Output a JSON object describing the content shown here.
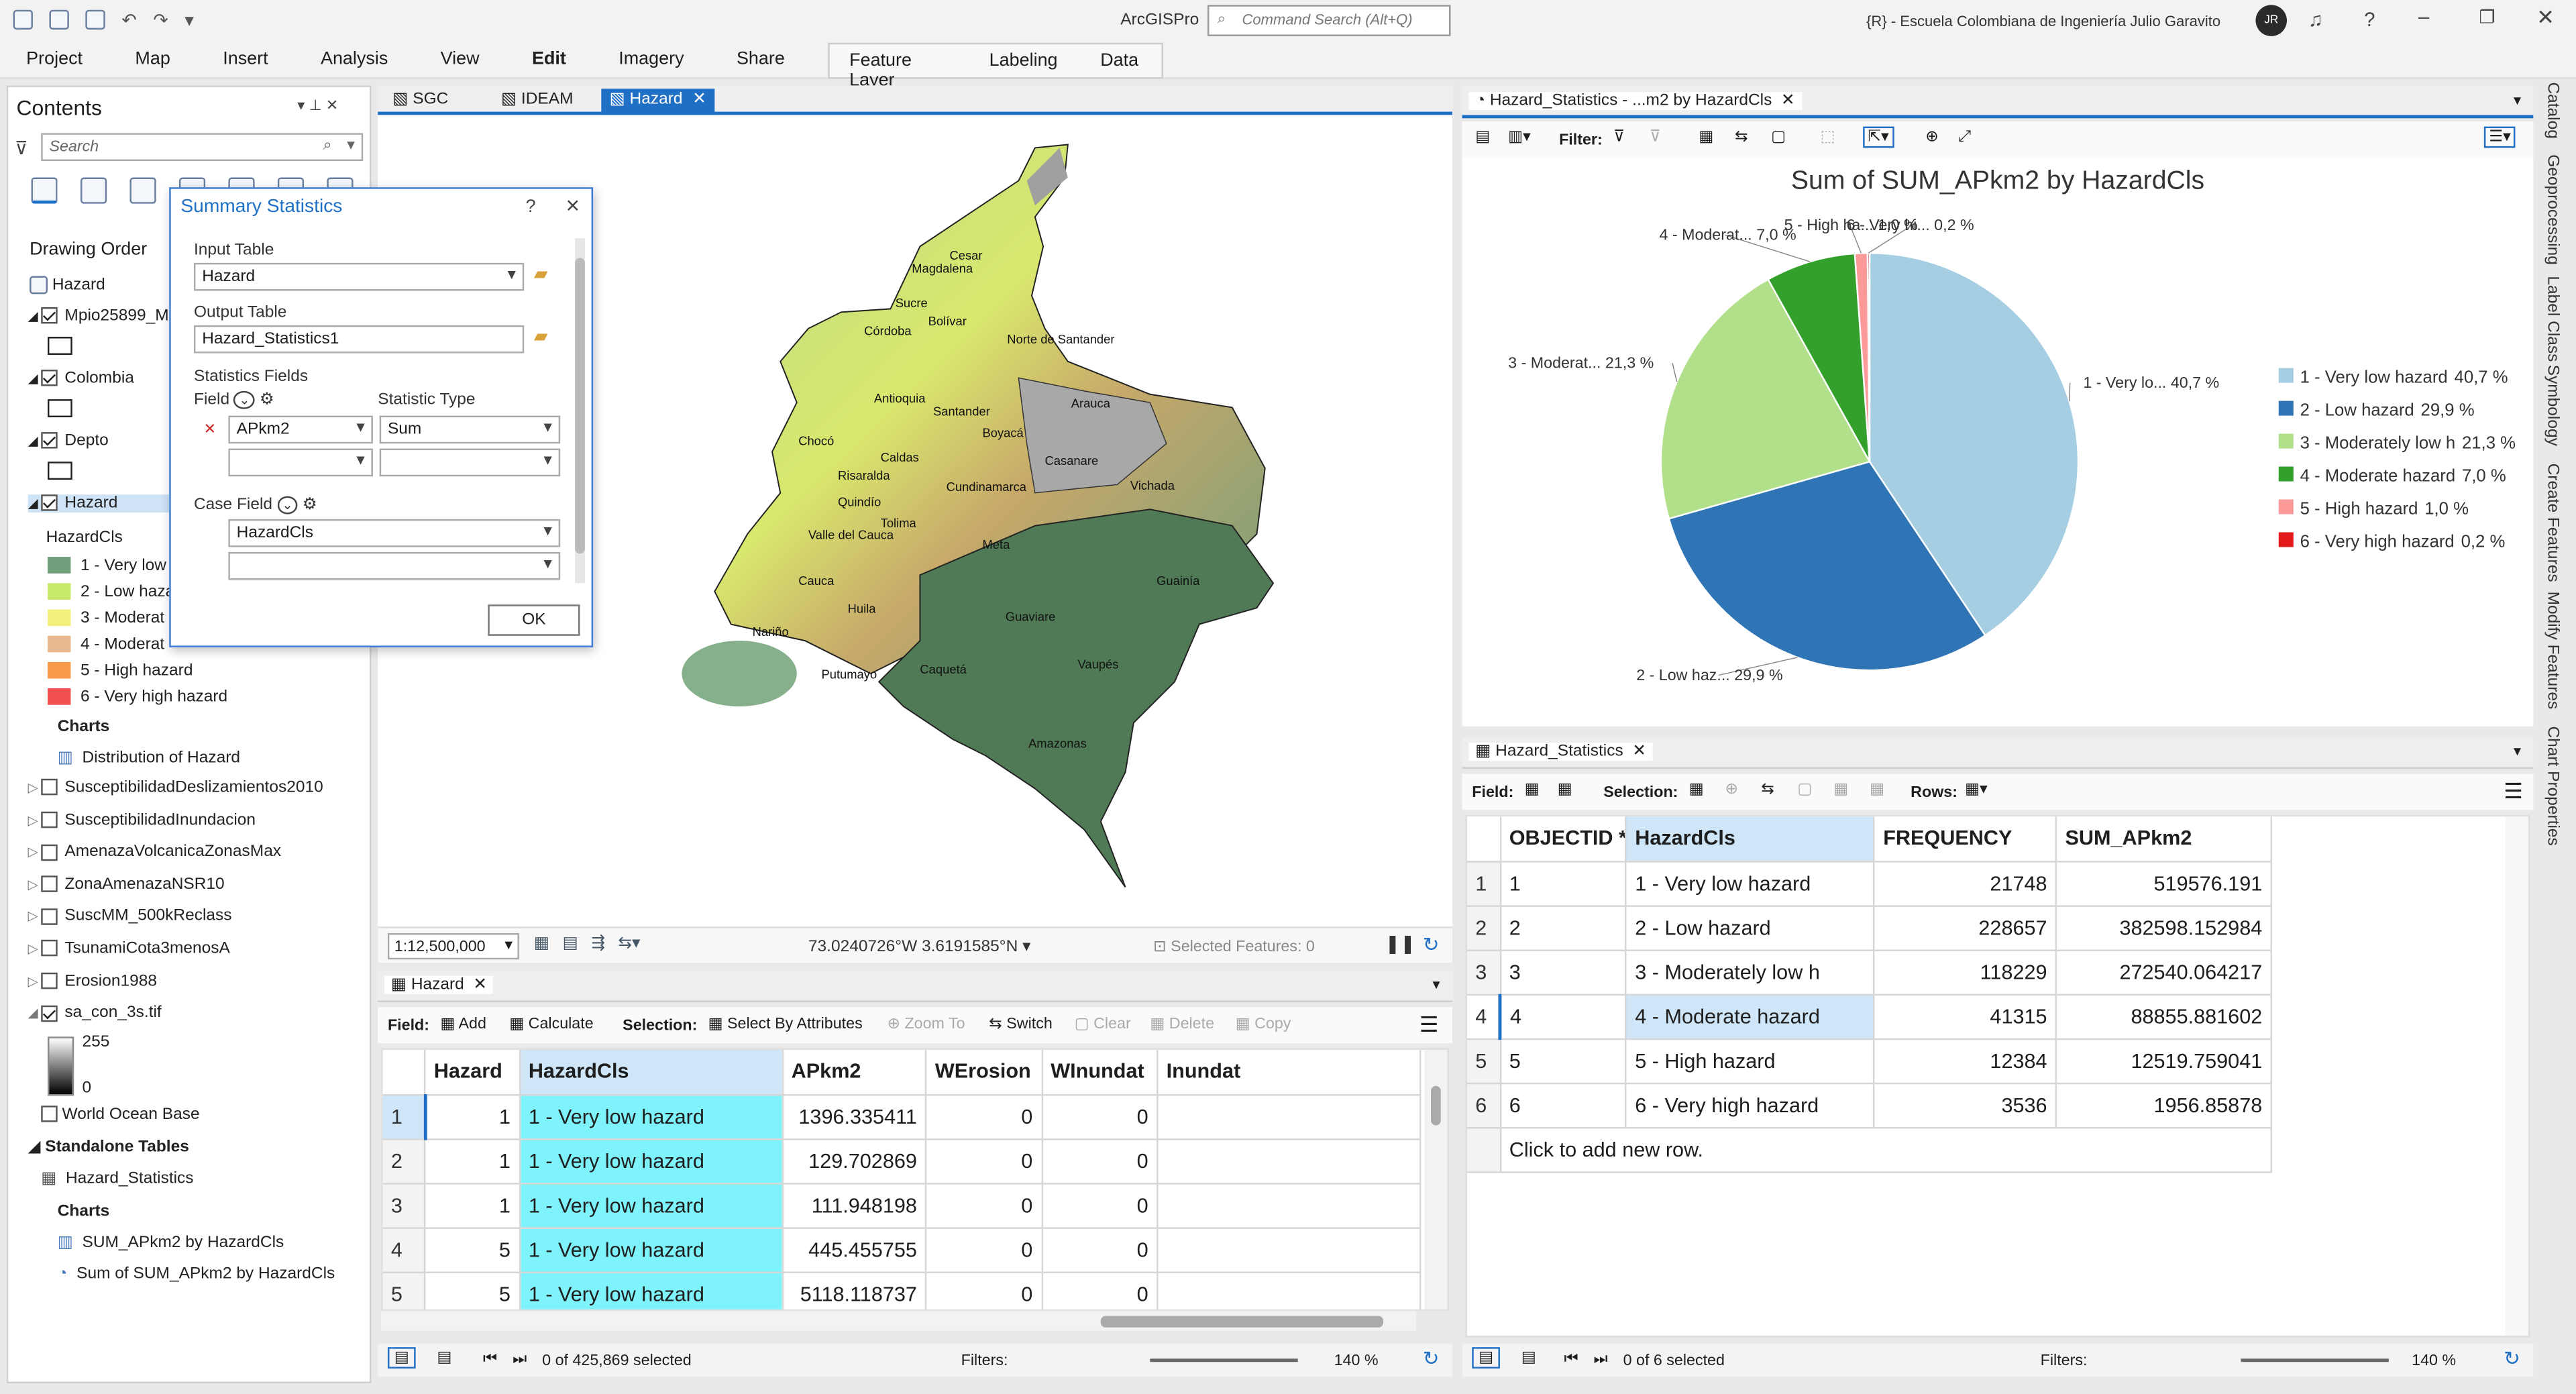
{
  "app": {
    "title": "ArcGISPro",
    "command_search_placeholder": "Command Search (Alt+Q)",
    "org": "{R} - Escuela Colombiana de Ingeniería Julio Garavito",
    "avatar_initials": "JR"
  },
  "ribbon": {
    "tabs": [
      "Project",
      "Map",
      "Insert",
      "Analysis",
      "View",
      "Edit",
      "Imagery",
      "Share",
      "Help"
    ],
    "active_tab": "Edit",
    "context_tabs": [
      "Feature Layer",
      "Labeling",
      "Data"
    ]
  },
  "contents": {
    "title": "Contents",
    "search_placeholder": "Search",
    "drawing_order": "Drawing Order",
    "map_name": "Hazard",
    "layers": [
      {
        "name": "Mpio25899_M",
        "checked": true
      },
      {
        "name": "Colombia",
        "checked": true
      },
      {
        "name": "Depto",
        "checked": true
      },
      {
        "name": "Hazard",
        "checked": true
      }
    ],
    "hazard_field": "HazardCls",
    "legend": [
      {
        "label": "1 - Very low",
        "color": "#6e9e7a"
      },
      {
        "label": "2 - Low haza",
        "color": "#c8e86a"
      },
      {
        "label": "3 - Moderat",
        "color": "#f2f07a"
      },
      {
        "label": "4 - Moderat",
        "color": "#e8b98e"
      },
      {
        "label": "5 - High hazard",
        "color": "#f89a4a"
      },
      {
        "label": "6 - Very high hazard",
        "color": "#f25050"
      }
    ],
    "charts_label": "Charts",
    "chart_item": "Distribution of Hazard",
    "more_layers": [
      {
        "name": "SusceptibilidadDeslizamientos2010",
        "checked": false
      },
      {
        "name": "SusceptibilidadInundacion",
        "checked": false
      },
      {
        "name": "AmenazaVolcanicaZonasMax",
        "checked": false
      },
      {
        "name": "ZonaAmenazaNSR10",
        "checked": false
      },
      {
        "name": "SuscMM_500kReclass",
        "checked": false
      },
      {
        "name": "TsunamiCota3menosA",
        "checked": false
      },
      {
        "name": "Erosion1988",
        "checked": false
      },
      {
        "name": "sa_con_3s.tif",
        "checked": true
      }
    ],
    "raster_max": "255",
    "raster_min": "0",
    "basemap": "World Ocean Base",
    "standalone": "Standalone Tables",
    "table": "Hazard_Statistics",
    "charts2": "Charts",
    "chart2_items": [
      "SUM_APkm2 by HazardCls",
      "Sum of SUM_APkm2 by HazardCls"
    ]
  },
  "map_tabs": [
    "SGC",
    "IDEAM",
    "Hazard"
  ],
  "summary": {
    "title": "Summary Statistics",
    "help": "?",
    "input_table_label": "Input Table",
    "input_table": "Hazard",
    "output_table_label": "Output Table",
    "output_table": "Hazard_Statistics1",
    "stats_fields_label": "Statistics Fields",
    "field_label": "Field",
    "stat_type_label": "Statistic Type",
    "field_value": "APkm2",
    "stat_value": "Sum",
    "case_field_label": "Case Field",
    "case_value": "HazardCls",
    "ok": "OK"
  },
  "map": {
    "scale": "1:12,500,000",
    "coords": "73.0240726°W 3.6191585°N",
    "selected": "Selected Features: 0",
    "labels": [
      "Cesar",
      "Magdalena",
      "Sucre",
      "Bolívar",
      "Córdoba",
      "Norte de Santander",
      "Antioquia",
      "Santander",
      "Boyacá",
      "Arauca",
      "Chocó",
      "Caldas",
      "Risaralda",
      "Cundinamarca",
      "Casanare",
      "Vichada",
      "Quindío",
      "Tolima",
      "Valle del Cauca",
      "Meta",
      "Guainía",
      "Cauca",
      "Huila",
      "Nariño",
      "Putumayo",
      "Caquetá",
      "Guaviare",
      "Vaupés",
      "Amazonas"
    ]
  },
  "chart": {
    "tab": "Hazard_Statistics - ...m2 by HazardCls",
    "filter_label": "Filter:",
    "title": "Sum of SUM_APkm2 by HazardCls",
    "chart_data": {
      "type": "pie",
      "title": "Sum of SUM_APkm2 by HazardCls",
      "slices": [
        {
          "label": "1 - Very low hazard",
          "value": 519576.191,
          "percent": "40,7 %",
          "color": "#a6cee3"
        },
        {
          "label": "2 - Low hazard",
          "value": 382598.152984,
          "percent": "29,9 %",
          "color": "#2f75b5"
        },
        {
          "label": "3 - Moderately low h",
          "value": 272540.064217,
          "percent": "21,3 %",
          "color": "#b2df8a"
        },
        {
          "label": "4 - Moderate hazard",
          "value": 88855.881602,
          "percent": "7,0 %",
          "color": "#33a02c"
        },
        {
          "label": "5 - High hazard",
          "value": 12519.759041,
          "percent": "1,0 %",
          "color": "#fb9a99"
        },
        {
          "label": "6 - Very high hazard",
          "value": 1956.85878,
          "percent": "0,2 %",
          "color": "#e31a1c"
        }
      ],
      "legend_position": "right",
      "slice_labels": [
        "1 - Very lo... 40,7 %",
        "2 - Low haz... 29,9 %",
        "3 - Moderat... 21,3 %",
        "4 - Moderat... 7,0 %",
        "5 - High ha... 1,0 %",
        "6 - Very hi... 0,2 %"
      ]
    }
  },
  "attr_left": {
    "tab": "Hazard",
    "field_label": "Field:",
    "add": "Add",
    "calculate": "Calculate",
    "selection_label": "Selection:",
    "select_by_attr": "Select By Attributes",
    "zoom_to": "Zoom To",
    "switch": "Switch",
    "clear": "Clear",
    "delete": "Delete",
    "copy": "Copy",
    "columns": [
      "Hazard",
      "HazardCls",
      "APkm2",
      "WErosion",
      "WInundat",
      "Inundat"
    ],
    "rows": [
      [
        "1",
        "1",
        "1 - Very low hazard",
        "1396.335411",
        "0",
        "0"
      ],
      [
        "2",
        "1",
        "1 - Very low hazard",
        "129.702869",
        "0",
        "0"
      ],
      [
        "3",
        "1",
        "1 - Very low hazard",
        "111.948198",
        "0",
        "0"
      ],
      [
        "4",
        "5",
        "1 - Very low hazard",
        "445.455755",
        "0",
        "0"
      ],
      [
        "5",
        "5",
        "1 - Very low hazard",
        "5118.118737",
        "0",
        "0"
      ]
    ],
    "status": "0 of 425,869 selected",
    "filters": "Filters:",
    "zoom": "140 %"
  },
  "attr_right": {
    "tab": "Hazard_Statistics",
    "field_label": "Field:",
    "selection_label": "Selection:",
    "rows_label": "Rows:",
    "columns": [
      "OBJECTID *",
      "HazardCls",
      "FREQUENCY",
      "SUM_APkm2"
    ],
    "rows": [
      [
        "1",
        "1",
        "1 - Very low hazard",
        "21748",
        "519576.191"
      ],
      [
        "2",
        "2",
        "2 - Low hazard",
        "228657",
        "382598.152984"
      ],
      [
        "3",
        "3",
        "3 - Moderately low h",
        "118229",
        "272540.064217"
      ],
      [
        "4",
        "4",
        "4 - Moderate hazard",
        "41315",
        "88855.881602"
      ],
      [
        "5",
        "5",
        "5 - High hazard",
        "12384",
        "12519.759041"
      ],
      [
        "6",
        "6",
        "6 - Very high hazard",
        "3536",
        "1956.85878"
      ]
    ],
    "add_row": "Click to add new row.",
    "status": "0 of 6 selected",
    "filters": "Filters:",
    "zoom": "140 %"
  },
  "side_tabs": [
    "Catalog",
    "Geoprocessing",
    "Label Class",
    "Symbology",
    "Create Features",
    "Modify Features",
    "Chart Properties"
  ]
}
